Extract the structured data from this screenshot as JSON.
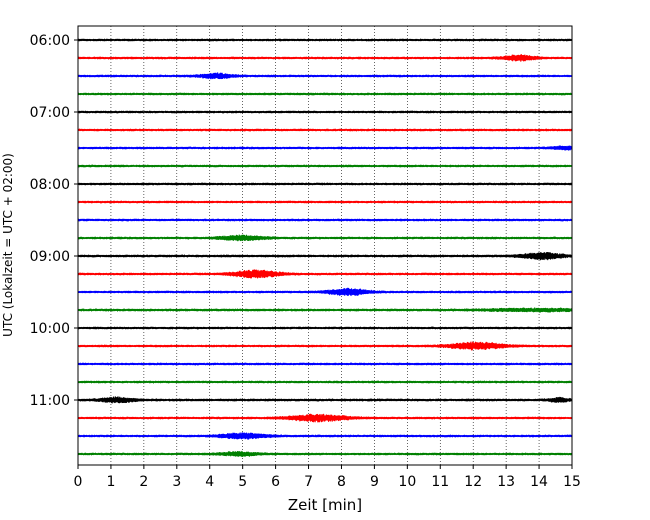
{
  "chart_data": {
    "type": "line",
    "title": "",
    "xlabel": "Zeit  [min]",
    "ylabel": "UTC (Lokalzeit = UTC + 02:00)",
    "xlim": [
      0,
      15
    ],
    "x_ticks": [
      0,
      1,
      2,
      3,
      4,
      5,
      6,
      7,
      8,
      9,
      10,
      11,
      12,
      13,
      14,
      15
    ],
    "x_tick_labels": [
      "0",
      "1",
      "2",
      "3",
      "4",
      "5",
      "6",
      "7",
      "8",
      "9",
      "10",
      "11",
      "12",
      "13",
      "14",
      "15"
    ],
    "y_tick_labels": [
      "06:00",
      "07:00",
      "08:00",
      "09:00",
      "10:00",
      "11:00"
    ],
    "y_tick_trace_index": [
      0,
      4,
      8,
      12,
      16,
      20
    ],
    "grid": "vertical dotted lines at each minute",
    "trace_interval_min": 15,
    "trace_colors": [
      "#000000",
      "#ff0000",
      "#0000ff",
      "#008000"
    ],
    "series": [
      {
        "start": "06:00",
        "color": "#000000",
        "noise": 0.9,
        "events": []
      },
      {
        "start": "06:15",
        "color": "#ff0000",
        "noise": 0.9,
        "events": [
          {
            "t": 13.4,
            "amp": 2.6,
            "width": 0.5
          }
        ]
      },
      {
        "start": "06:30",
        "color": "#0000ff",
        "noise": 0.9,
        "events": [
          {
            "t": 4.2,
            "amp": 2.4,
            "width": 0.5
          }
        ]
      },
      {
        "start": "06:45",
        "color": "#008000",
        "noise": 0.9,
        "events": []
      },
      {
        "start": "07:00",
        "color": "#000000",
        "noise": 0.9,
        "events": []
      },
      {
        "start": "07:15",
        "color": "#ff0000",
        "noise": 0.9,
        "events": []
      },
      {
        "start": "07:30",
        "color": "#0000ff",
        "noise": 0.9,
        "events": [
          {
            "t": 14.8,
            "amp": 1.6,
            "width": 0.4
          }
        ]
      },
      {
        "start": "07:45",
        "color": "#008000",
        "noise": 0.9,
        "events": []
      },
      {
        "start": "08:00",
        "color": "#000000",
        "noise": 0.9,
        "events": []
      },
      {
        "start": "08:15",
        "color": "#ff0000",
        "noise": 0.9,
        "events": []
      },
      {
        "start": "08:30",
        "color": "#0000ff",
        "noise": 0.9,
        "events": []
      },
      {
        "start": "08:45",
        "color": "#008000",
        "noise": 0.9,
        "events": [
          {
            "t": 5.0,
            "amp": 2.2,
            "width": 0.7
          }
        ]
      },
      {
        "start": "09:00",
        "color": "#000000",
        "noise": 1.0,
        "events": [
          {
            "t": 14.1,
            "amp": 3.0,
            "width": 0.6
          }
        ]
      },
      {
        "start": "09:15",
        "color": "#ff0000",
        "noise": 0.9,
        "events": [
          {
            "t": 5.4,
            "amp": 3.6,
            "width": 0.7
          }
        ]
      },
      {
        "start": "09:30",
        "color": "#0000ff",
        "noise": 0.9,
        "events": [
          {
            "t": 8.2,
            "amp": 3.2,
            "width": 0.6
          }
        ]
      },
      {
        "start": "09:45",
        "color": "#008000",
        "noise": 1.0,
        "events": [
          {
            "t": 14.0,
            "amp": 1.2,
            "width": 1.5
          }
        ]
      },
      {
        "start": "10:00",
        "color": "#000000",
        "noise": 0.9,
        "events": []
      },
      {
        "start": "10:15",
        "color": "#ff0000",
        "noise": 0.9,
        "events": [
          {
            "t": 12.1,
            "amp": 3.4,
            "width": 0.8
          }
        ]
      },
      {
        "start": "10:30",
        "color": "#0000ff",
        "noise": 0.9,
        "events": []
      },
      {
        "start": "10:45",
        "color": "#008000",
        "noise": 0.9,
        "events": []
      },
      {
        "start": "11:00",
        "color": "#000000",
        "noise": 1.0,
        "events": [
          {
            "t": 1.2,
            "amp": 2.4,
            "width": 0.5
          },
          {
            "t": 14.6,
            "amp": 1.8,
            "width": 0.3
          }
        ]
      },
      {
        "start": "11:15",
        "color": "#ff0000",
        "noise": 0.9,
        "events": [
          {
            "t": 7.3,
            "amp": 3.2,
            "width": 0.9
          }
        ]
      },
      {
        "start": "11:30",
        "color": "#0000ff",
        "noise": 0.9,
        "events": [
          {
            "t": 5.0,
            "amp": 2.6,
            "width": 0.7
          }
        ]
      },
      {
        "start": "11:45",
        "color": "#008000",
        "noise": 0.9,
        "events": [
          {
            "t": 4.9,
            "amp": 1.8,
            "width": 0.6
          }
        ]
      }
    ]
  }
}
